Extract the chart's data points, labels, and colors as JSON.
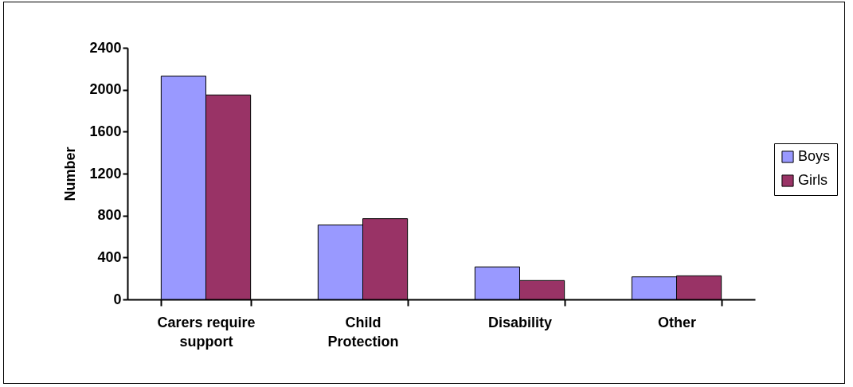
{
  "chart_data": {
    "type": "bar",
    "ylabel": "Number",
    "categories": [
      "Carers require support",
      "Child Protection",
      "Disability",
      "Other"
    ],
    "series": [
      {
        "name": "Boys",
        "color": "#9999ff",
        "values": [
          2130,
          710,
          310,
          215
        ]
      },
      {
        "name": "Girls",
        "color": "#993366",
        "values": [
          1950,
          770,
          180,
          225
        ]
      }
    ],
    "ylim": [
      0,
      2400
    ],
    "yticks": [
      0,
      400,
      800,
      1200,
      1600,
      2000,
      2400
    ],
    "grid": false,
    "legend": "right"
  }
}
